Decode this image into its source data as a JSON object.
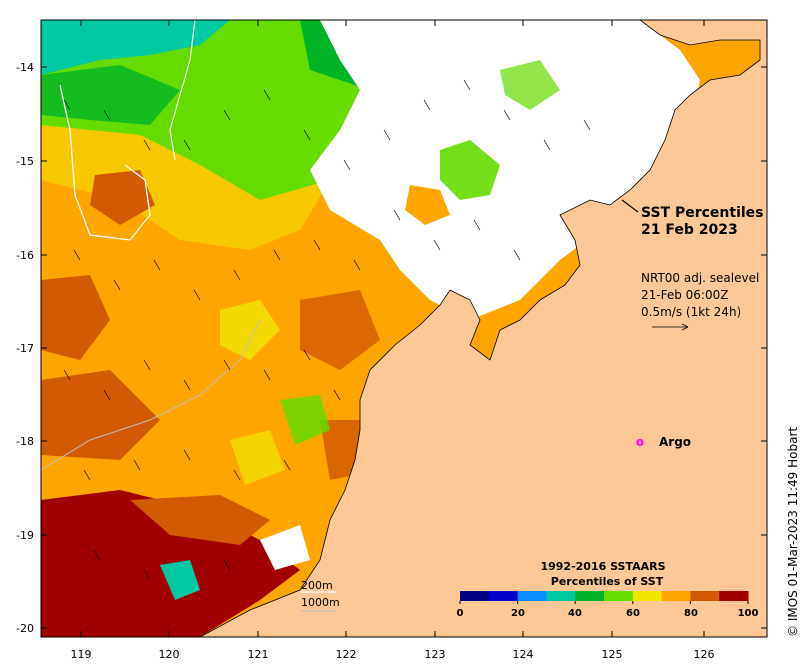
{
  "title_line1": "SST Percentiles",
  "title_line2": "21 Feb 2023",
  "currents": {
    "line1": "NRT00 adj. sealevel",
    "line2": "21-Feb 06:00Z",
    "line3": "0.5m/s (1kt 24h)"
  },
  "argo_label": "Argo",
  "argo_marker": "o",
  "depth_labels": [
    "200m",
    "1000m"
  ],
  "credit": "© IMOS 01-Mar-2023 11:49 Hobart",
  "lat_ticks": [
    "-14",
    "-15",
    "-16",
    "-17",
    "-18",
    "-19",
    "-20"
  ],
  "lon_ticks": [
    "119",
    "120",
    "121",
    "122",
    "123",
    "124",
    "125",
    "126"
  ],
  "legend": {
    "title1": "1992-2016 SSTAARS",
    "title2": "Percentiles of SST",
    "ticks": [
      "0",
      "20",
      "40",
      "60",
      "80",
      "100"
    ],
    "colors": [
      "#000080",
      "#0000c8",
      "#0a8cff",
      "#00c8a0",
      "#00b428",
      "#64dc00",
      "#f0e600",
      "#ffa500",
      "#d25a00",
      "#a00000"
    ]
  },
  "colors": {
    "land": "#fdc896",
    "no_data": "#ffffff",
    "argo": "#ff00ff"
  }
}
